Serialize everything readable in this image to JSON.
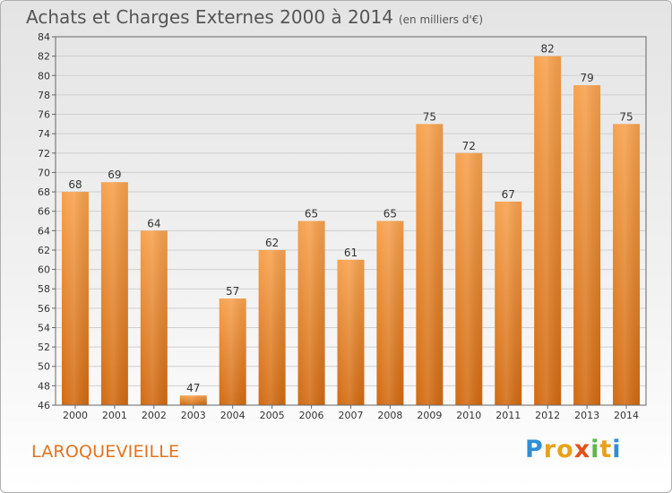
{
  "header": {
    "title": "Achats et Charges Externes 2000 à 2014",
    "subtitle": "(en milliers d'€)"
  },
  "place": "LAROQUEVIEILLE",
  "logo": {
    "letters": [
      "P",
      "r",
      "o",
      "x",
      "i",
      "t",
      "i"
    ],
    "colors": [
      "#2f8fd6",
      "#e8a21a",
      "#e8a21a",
      "#e2511c",
      "#5bb84a",
      "#e8a21a",
      "#2f8fd6"
    ]
  },
  "chart_data": {
    "type": "bar",
    "title": "Achats et Charges Externes 2000 à 2014",
    "subtitle": "(en milliers d'€)",
    "xlabel": "",
    "ylabel": "",
    "categories": [
      "2000",
      "2001",
      "2002",
      "2003",
      "2004",
      "2005",
      "2006",
      "2007",
      "2008",
      "2009",
      "2010",
      "2011",
      "2012",
      "2013",
      "2014"
    ],
    "values": [
      68,
      69,
      64,
      47,
      57,
      62,
      65,
      61,
      65,
      75,
      72,
      67,
      82,
      79,
      75
    ],
    "ylim": [
      46,
      84
    ],
    "ytick_step": 2,
    "grid": true,
    "bar_color_top": "#f7a24e",
    "bar_color_bottom": "#d26b12"
  }
}
